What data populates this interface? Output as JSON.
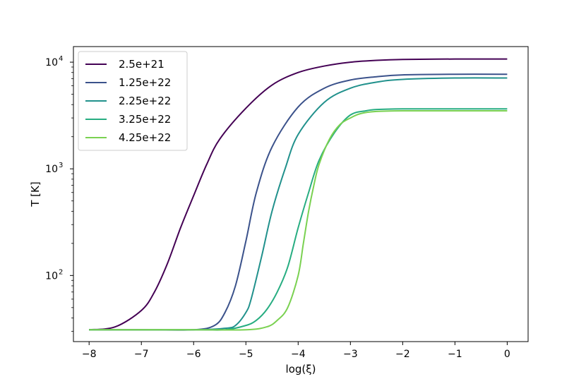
{
  "chart_data": {
    "type": "line",
    "xlabel": "log(ξ)",
    "ylabel": "T [K]",
    "xlim": [
      -8.3,
      0.4
    ],
    "ylim": [
      24,
      14000
    ],
    "yscale": "log",
    "grid": false,
    "legend_position": "top-left",
    "x_ticks": [
      -8,
      -7,
      -6,
      -5,
      -4,
      -3,
      -2,
      -1,
      0
    ],
    "x_tick_labels": [
      "−8",
      "−7",
      "−6",
      "−5",
      "−4",
      "−3",
      "−2",
      "−1",
      "0"
    ],
    "y_ticks": [
      100,
      1000,
      10000
    ],
    "y_tick_labels": [
      {
        "base": "10",
        "exp": "2"
      },
      {
        "base": "10",
        "exp": "3"
      },
      {
        "base": "10",
        "exp": "4"
      }
    ],
    "series": [
      {
        "name": "2.5e+21",
        "color": "#440154",
        "x": [
          -8,
          -7.5,
          -7,
          -6.75,
          -6.5,
          -6.25,
          -6,
          -5.75,
          -5.5,
          -5,
          -4.5,
          -4,
          -3.5,
          -3,
          -2.5,
          -2,
          -1,
          0
        ],
        "y": [
          31,
          33,
          47,
          70,
          130,
          280,
          560,
          1100,
          1900,
          3700,
          6100,
          8000,
          9200,
          10000,
          10400,
          10600,
          10700,
          10700
        ]
      },
      {
        "name": "1.25e+22",
        "color": "#3b528b",
        "x": [
          -8,
          -7,
          -6,
          -5.6,
          -5.4,
          -5.2,
          -5,
          -4.8,
          -4.5,
          -4,
          -3.5,
          -3,
          -2.5,
          -2,
          -1,
          0
        ],
        "y": [
          31,
          31,
          31,
          34,
          45,
          80,
          210,
          600,
          1600,
          3800,
          5700,
          6800,
          7300,
          7600,
          7700,
          7700
        ]
      },
      {
        "name": "2.25e+22",
        "color": "#21918c",
        "x": [
          -8,
          -6,
          -5.4,
          -5.2,
          -5,
          -4.9,
          -4.7,
          -4.5,
          -4.25,
          -4,
          -3.5,
          -3,
          -2.5,
          -2,
          -1,
          0
        ],
        "y": [
          31,
          31,
          32,
          34,
          45,
          60,
          150,
          400,
          1000,
          2100,
          4200,
          5700,
          6500,
          6900,
          7100,
          7100
        ]
      },
      {
        "name": "3.25e+22",
        "color": "#27ad81",
        "x": [
          -8,
          -6,
          -5.4,
          -5,
          -4.8,
          -4.6,
          -4.4,
          -4.2,
          -4,
          -3.8,
          -3.6,
          -3.3,
          -3,
          -2.7,
          -2.5,
          -2,
          -1,
          0
        ],
        "y": [
          31,
          31,
          31,
          34,
          38,
          48,
          70,
          120,
          280,
          600,
          1200,
          2200,
          3200,
          3500,
          3600,
          3650,
          3650,
          3650
        ]
      },
      {
        "name": "4.25e+22",
        "color": "#7ad151",
        "x": [
          -8,
          -6,
          -5,
          -4.6,
          -4.4,
          -4.2,
          -4,
          -3.9,
          -3.8,
          -3.7,
          -3.6,
          -3.4,
          -3.2,
          -3,
          -2.8,
          -2.5,
          -2,
          -1,
          0
        ],
        "y": [
          31,
          31,
          31,
          33,
          38,
          50,
          100,
          200,
          400,
          700,
          1100,
          1900,
          2600,
          3000,
          3300,
          3450,
          3500,
          3500,
          3500
        ]
      }
    ]
  }
}
